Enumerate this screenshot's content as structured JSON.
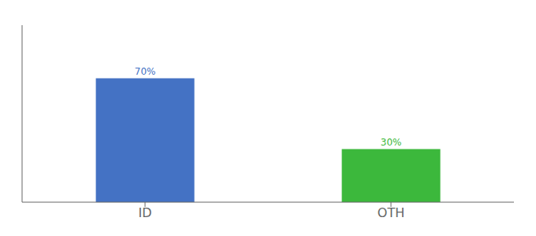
{
  "chart_data": {
    "type": "bar",
    "categories": [
      "ID",
      "OTH"
    ],
    "values": [
      70,
      30
    ],
    "value_labels": [
      "70%",
      "30%"
    ],
    "data_labels": true,
    "colors": [
      "#4472c4",
      "#3cb83c"
    ],
    "ylim": [
      0,
      100
    ],
    "grid": false,
    "tick_labels": "x"
  }
}
